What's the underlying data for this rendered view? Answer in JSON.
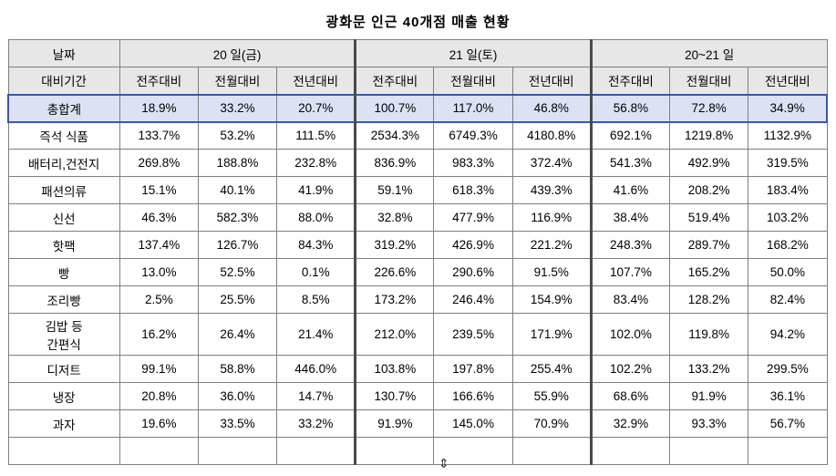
{
  "title": "광화문  인근  40개점  매출  현황",
  "cursor_glyph": "⇕",
  "table": {
    "header_row1": {
      "date_label": "날짜",
      "groups": [
        "20 일(금)",
        "21 일(토)",
        "20~21 일"
      ]
    },
    "header_row2": {
      "period_label": "대비기간",
      "cols": [
        "전주대비",
        "전월대비",
        "전년대비",
        "전주대비",
        "전월대비",
        "전년대비",
        "전주대비",
        "전월대비",
        "전년대비"
      ]
    },
    "rows": [
      {
        "label": "총합계",
        "highlight": true,
        "values": [
          "18.9%",
          "33.2%",
          "20.7%",
          "100.7%",
          "117.0%",
          "46.8%",
          "56.8%",
          "72.8%",
          "34.9%"
        ]
      },
      {
        "label": "즉석 식품",
        "values": [
          "133.7%",
          "53.2%",
          "111.5%",
          "2534.3%",
          "6749.3%",
          "4180.8%",
          "692.1%",
          "1219.8%",
          "1132.9%"
        ]
      },
      {
        "label": "배터리,건전지",
        "values": [
          "269.8%",
          "188.8%",
          "232.8%",
          "836.9%",
          "983.3%",
          "372.4%",
          "541.3%",
          "492.9%",
          "319.5%"
        ]
      },
      {
        "label": "패션의류",
        "values": [
          "15.1%",
          "40.1%",
          "41.9%",
          "59.1%",
          "618.3%",
          "439.3%",
          "41.6%",
          "208.2%",
          "183.4%"
        ]
      },
      {
        "label": "신선",
        "values": [
          "46.3%",
          "582.3%",
          "88.0%",
          "32.8%",
          "477.9%",
          "116.9%",
          "38.4%",
          "519.4%",
          "103.2%"
        ]
      },
      {
        "label": "핫팩",
        "values": [
          "137.4%",
          "126.7%",
          "84.3%",
          "319.2%",
          "426.9%",
          "221.2%",
          "248.3%",
          "289.7%",
          "168.2%"
        ]
      },
      {
        "label": "빵",
        "values": [
          "13.0%",
          "52.5%",
          "0.1%",
          "226.6%",
          "290.6%",
          "91.5%",
          "107.7%",
          "165.2%",
          "50.0%"
        ]
      },
      {
        "label": "조리빵",
        "values": [
          "2.5%",
          "25.5%",
          "8.5%",
          "173.2%",
          "246.4%",
          "154.9%",
          "83.4%",
          "128.2%",
          "82.4%"
        ]
      },
      {
        "label": "김밥 등\n간편식",
        "tall": true,
        "values": [
          "16.2%",
          "26.4%",
          "21.4%",
          "212.0%",
          "239.5%",
          "171.9%",
          "102.0%",
          "119.8%",
          "94.2%"
        ]
      },
      {
        "label": "디저트",
        "values": [
          "99.1%",
          "58.8%",
          "446.0%",
          "103.8%",
          "197.8%",
          "255.4%",
          "102.2%",
          "133.2%",
          "299.5%"
        ]
      },
      {
        "label": "냉장",
        "values": [
          "20.8%",
          "36.0%",
          "14.7%",
          "130.7%",
          "166.6%",
          "55.9%",
          "68.6%",
          "91.9%",
          "36.1%"
        ]
      },
      {
        "label": "과자",
        "values": [
          "19.6%",
          "33.5%",
          "33.2%",
          "91.9%",
          "145.0%",
          "70.9%",
          "32.9%",
          "93.3%",
          "56.7%"
        ]
      },
      {
        "label": "",
        "empty": true,
        "values": [
          "",
          "",
          "",
          "",
          "",
          "",
          "",
          "",
          ""
        ]
      }
    ],
    "colors": {
      "header_bg": "#e7e7e7",
      "total_bg": "#dce2f4",
      "total_border": "#3c57a8",
      "grid_border": "#7f7f7f",
      "group_border": "#4a4a4a"
    }
  }
}
